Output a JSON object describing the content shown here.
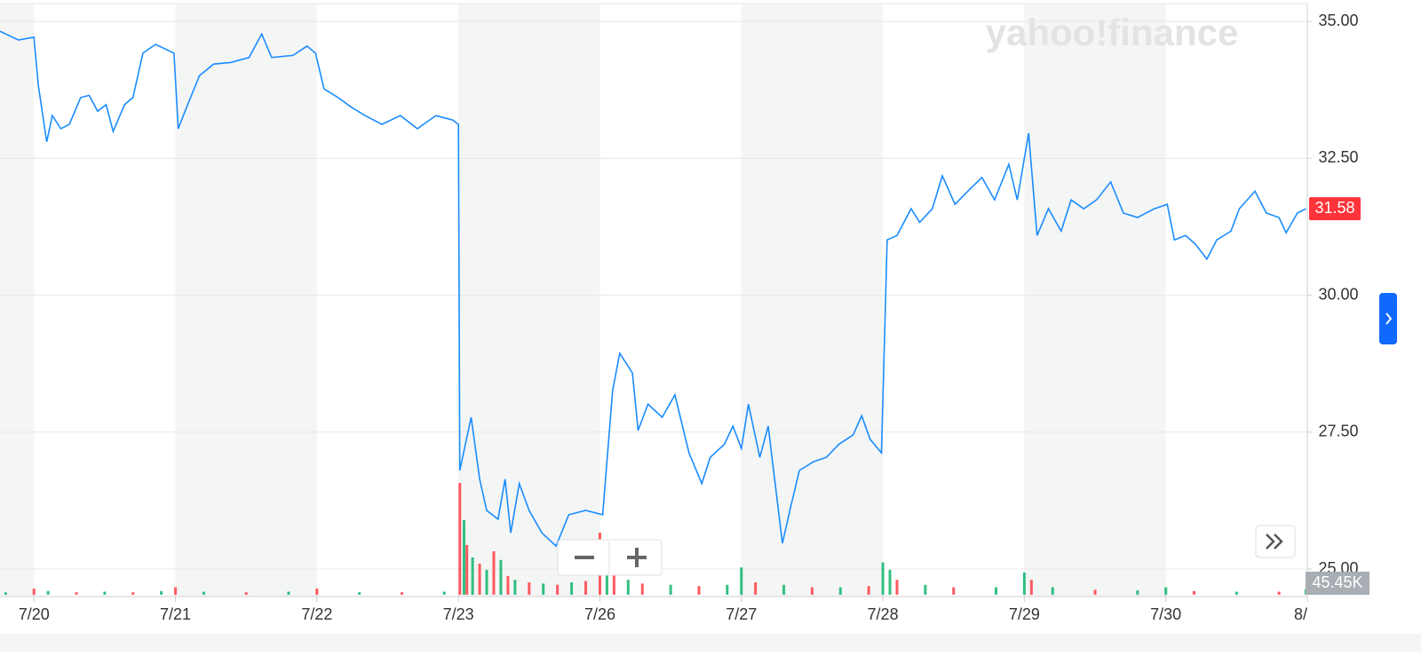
{
  "chart_data": {
    "type": "line",
    "watermark": "yahoo!finance",
    "xlim": [
      -0.24,
      9
    ],
    "xticks": [
      {
        "value": 0,
        "label": "7/20"
      },
      {
        "value": 1,
        "label": "7/21"
      },
      {
        "value": 2,
        "label": "7/22"
      },
      {
        "value": 3,
        "label": "7/23"
      },
      {
        "value": 4,
        "label": "7/26"
      },
      {
        "value": 5,
        "label": "7/27"
      },
      {
        "value": 6,
        "label": "7/28"
      },
      {
        "value": 7,
        "label": "7/29"
      },
      {
        "value": 8,
        "label": "7/30"
      },
      {
        "value": 9,
        "label": "8/"
      }
    ],
    "ylim": [
      24.53,
      35.31
    ],
    "yticks": [
      {
        "value": 25,
        "label": "25.00"
      },
      {
        "value": 27.5,
        "label": "27.50"
      },
      {
        "value": 30,
        "label": "30.00"
      },
      {
        "value": 32.5,
        "label": "32.50"
      },
      {
        "value": 35,
        "label": "35.00"
      }
    ],
    "grid": true,
    "series": [
      {
        "color": "#1a8cff",
        "x": [
          -0.24,
          -0.11,
          0,
          0.03,
          0.09,
          0.13,
          0.19,
          0.25,
          0.33,
          0.39,
          0.45,
          0.51,
          0.56,
          0.64,
          0.7,
          0.77,
          0.86,
          0.99,
          1.02,
          1.08,
          1.17,
          1.27,
          1.39,
          1.52,
          1.61,
          1.68,
          1.83,
          1.93,
          1.99,
          2.05,
          2.15,
          2.24,
          2.34,
          2.46,
          2.59,
          2.71,
          2.84,
          2.96,
          3.0,
          3.01,
          3.09,
          3.15,
          3.2,
          3.28,
          3.33,
          3.37,
          3.43,
          3.5,
          3.59,
          3.69,
          3.78,
          3.9,
          4.02,
          4.09,
          4.14,
          4.23,
          4.27,
          4.34,
          4.44,
          4.53,
          4.63,
          4.72,
          4.78,
          4.88,
          4.94,
          5.0,
          5.05,
          5.13,
          5.19,
          5.22,
          5.29,
          5.35,
          5.41,
          5.51,
          5.6,
          5.69,
          5.79,
          5.85,
          5.91,
          5.99,
          6.03,
          6.1,
          6.2,
          6.26,
          6.35,
          6.42,
          6.51,
          6.6,
          6.7,
          6.79,
          6.89,
          6.95,
          7.03,
          7.09,
          7.17,
          7.26,
          7.33,
          7.42,
          7.51,
          7.61,
          7.7,
          7.8,
          7.92,
          8.01,
          8.06,
          8.14,
          8.21,
          8.29,
          8.36,
          8.46,
          8.52,
          8.63,
          8.71,
          8.8,
          8.85,
          8.93,
          8.99
        ],
        "values": [
          34.82,
          34.66,
          34.71,
          33.85,
          32.8,
          33.28,
          33.04,
          33.12,
          33.61,
          33.65,
          33.36,
          33.48,
          32.99,
          33.48,
          33.61,
          34.42,
          34.58,
          34.42,
          33.04,
          33.44,
          34.01,
          34.22,
          34.25,
          34.34,
          34.77,
          34.34,
          34.38,
          34.55,
          34.42,
          33.77,
          33.61,
          33.44,
          33.28,
          33.12,
          33.28,
          33.04,
          33.28,
          33.2,
          33.12,
          26.8,
          27.77,
          26.64,
          26.07,
          25.91,
          26.64,
          25.66,
          26.56,
          26.07,
          25.66,
          25.42,
          25.99,
          26.07,
          25.99,
          28.26,
          28.94,
          28.58,
          27.53,
          28.01,
          27.77,
          28.18,
          27.12,
          26.56,
          27.04,
          27.28,
          27.61,
          27.2,
          28.01,
          27.04,
          27.61,
          26.96,
          25.47,
          26.15,
          26.8,
          26.96,
          27.04,
          27.28,
          27.45,
          27.8,
          27.37,
          27.12,
          31.01,
          31.09,
          31.58,
          31.33,
          31.58,
          32.18,
          31.66,
          31.9,
          32.15,
          31.74,
          32.39,
          31.74,
          32.96,
          31.09,
          31.58,
          31.17,
          31.74,
          31.58,
          31.74,
          32.07,
          31.5,
          31.42,
          31.58,
          31.66,
          31.01,
          31.09,
          30.93,
          30.66,
          31.01,
          31.17,
          31.58,
          31.9,
          31.5,
          31.42,
          31.14,
          31.5,
          31.58
        ]
      }
    ],
    "last_price": {
      "value": 31.58,
      "label": "31.58",
      "color": "#ff333a"
    },
    "volume": {
      "ylim": [
        0,
        1000
      ],
      "x": [
        -0.2,
        0,
        0.1,
        0.3,
        0.5,
        0.7,
        0.9,
        1,
        1.2,
        1.5,
        1.8,
        2,
        2.3,
        2.6,
        2.9,
        3.01,
        3.04,
        3.06,
        3.1,
        3.15,
        3.2,
        3.25,
        3.3,
        3.35,
        3.4,
        3.5,
        3.6,
        3.7,
        3.8,
        3.9,
        4,
        4.05,
        4.1,
        4.2,
        4.3,
        4.5,
        4.7,
        4.9,
        5,
        5.1,
        5.3,
        5.5,
        5.7,
        5.9,
        6,
        6.05,
        6.1,
        6.3,
        6.5,
        6.8,
        7,
        7.05,
        7.2,
        7.5,
        7.8,
        8,
        8.2,
        8.5,
        8.8,
        8.99
      ],
      "values": [
        20,
        50,
        30,
        20,
        25,
        20,
        30,
        60,
        25,
        20,
        25,
        50,
        20,
        20,
        25,
        900,
        600,
        400,
        300,
        250,
        200,
        350,
        280,
        150,
        120,
        100,
        90,
        80,
        100,
        110,
        500,
        250,
        180,
        120,
        90,
        80,
        70,
        80,
        220,
        100,
        80,
        60,
        60,
        70,
        260,
        200,
        120,
        80,
        60,
        60,
        180,
        120,
        60,
        40,
        35,
        60,
        30,
        25,
        25,
        45.45
      ],
      "colors": [
        "#00b061",
        "#ff333a",
        "#00b061",
        "#ff333a",
        "#00b061",
        "#ff333a",
        "#00b061",
        "#ff333a",
        "#00b061",
        "#ff333a",
        "#00b061",
        "#ff333a",
        "#00b061",
        "#ff333a",
        "#00b061",
        "#ff333a",
        "#00b061",
        "#ff333a",
        "#00b061",
        "#ff333a",
        "#00b061",
        "#ff333a",
        "#00b061",
        "#ff333a",
        "#00b061",
        "#ff333a",
        "#00b061",
        "#ff333a",
        "#00b061",
        "#ff333a",
        "#ff333a",
        "#00b061",
        "#ff333a",
        "#00b061",
        "#ff333a",
        "#00b061",
        "#ff333a",
        "#00b061",
        "#00b061",
        "#ff333a",
        "#00b061",
        "#ff333a",
        "#00b061",
        "#ff333a",
        "#00b061",
        "#00b061",
        "#ff333a",
        "#00b061",
        "#ff333a",
        "#00b061",
        "#00b061",
        "#ff333a",
        "#00b061",
        "#ff333a",
        "#00b061",
        "#00b061",
        "#ff333a",
        "#00b061",
        "#ff333a",
        "#00b061"
      ],
      "last": {
        "value": 45.45,
        "label": "45.45K"
      }
    }
  }
}
